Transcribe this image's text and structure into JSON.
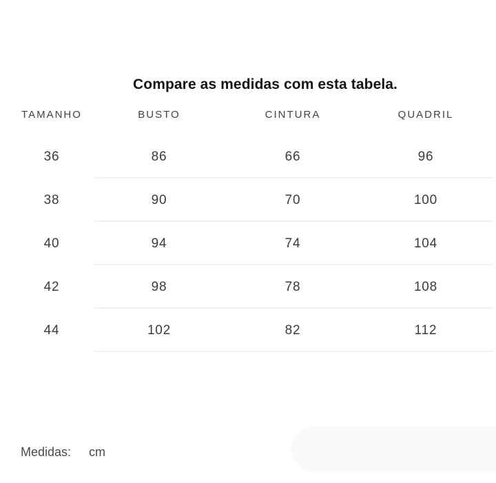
{
  "title": "Compare as medidas com esta tabela.",
  "table": {
    "headers": [
      "TAMANHO",
      "BUSTO",
      "CINTURA",
      "QUADRIL"
    ],
    "rows": [
      {
        "size": "36",
        "busto": "86",
        "cintura": "66",
        "quadril": "96"
      },
      {
        "size": "38",
        "busto": "90",
        "cintura": "70",
        "quadril": "100"
      },
      {
        "size": "40",
        "busto": "94",
        "cintura": "74",
        "quadril": "104"
      },
      {
        "size": "42",
        "busto": "98",
        "cintura": "78",
        "quadril": "108"
      },
      {
        "size": "44",
        "busto": "102",
        "cintura": "82",
        "quadril": "112"
      }
    ]
  },
  "footer": {
    "label": "Medidas:",
    "unit": "cm"
  },
  "colors": {
    "background": "#ffffff",
    "title_text": "#151515",
    "header_text": "#3e434a",
    "cell_text": "#3b3b3b",
    "divider": "#f2f2f2",
    "footer_text": "#4a4a4a",
    "pill_background": "#fafafa"
  },
  "chart_data": {
    "type": "table",
    "title": "Compare as medidas com esta tabela.",
    "columns": [
      "TAMANHO",
      "BUSTO",
      "CINTURA",
      "QUADRIL"
    ],
    "rows": [
      [
        36,
        86,
        66,
        96
      ],
      [
        38,
        90,
        70,
        100
      ],
      [
        40,
        94,
        74,
        104
      ],
      [
        42,
        98,
        78,
        108
      ],
      [
        44,
        102,
        82,
        112
      ]
    ],
    "unit_label": "Medidas:",
    "unit": "cm",
    "layout": "size guide table, white background, light row dividers spanning measurement columns only"
  }
}
